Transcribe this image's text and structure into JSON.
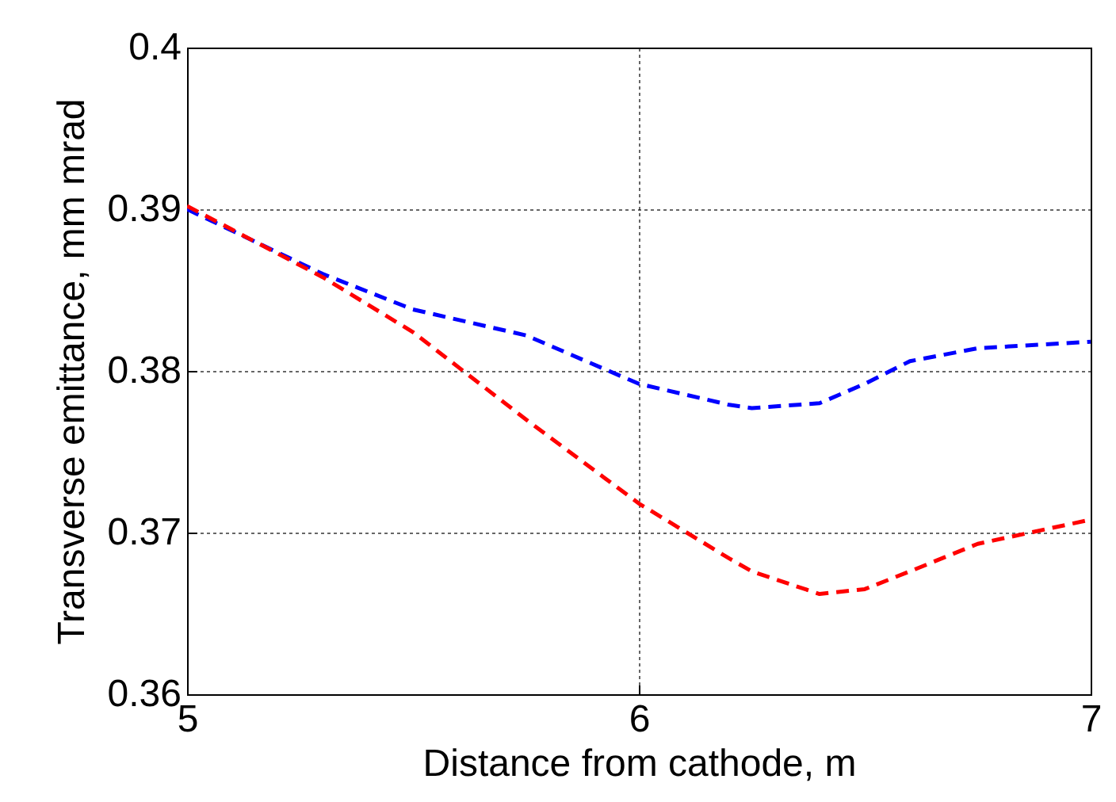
{
  "chart_data": {
    "type": "line",
    "xlabel": "Distance from cathode, m",
    "ylabel": "Transverse emittance, mm mrad",
    "x": [
      5,
      5.3,
      5.5,
      5.75,
      6,
      6.2,
      6.25,
      6.4,
      6.5,
      6.6,
      6.75,
      7
    ],
    "series": [
      {
        "color": "#0000ff",
        "values": [
          0.39,
          0.386,
          0.3838,
          0.3822,
          0.3792,
          0.3779,
          0.3777,
          0.378,
          0.3792,
          0.3806,
          0.3814,
          0.3818
        ]
      },
      {
        "color": "#ff0000",
        "values": [
          0.3902,
          0.3858,
          0.3824,
          0.377,
          0.3718,
          0.3684,
          0.3676,
          0.3662,
          0.3665,
          0.3676,
          0.3693,
          0.3708
        ]
      }
    ],
    "xlim": [
      5,
      7
    ],
    "xticks": [
      5,
      6,
      7
    ],
    "ylim": [
      0.36,
      0.4
    ],
    "yticks": [
      0.36,
      0.37,
      0.38,
      0.39,
      0.4
    ],
    "grid": true,
    "line_style": "dashed",
    "marker": "none"
  }
}
